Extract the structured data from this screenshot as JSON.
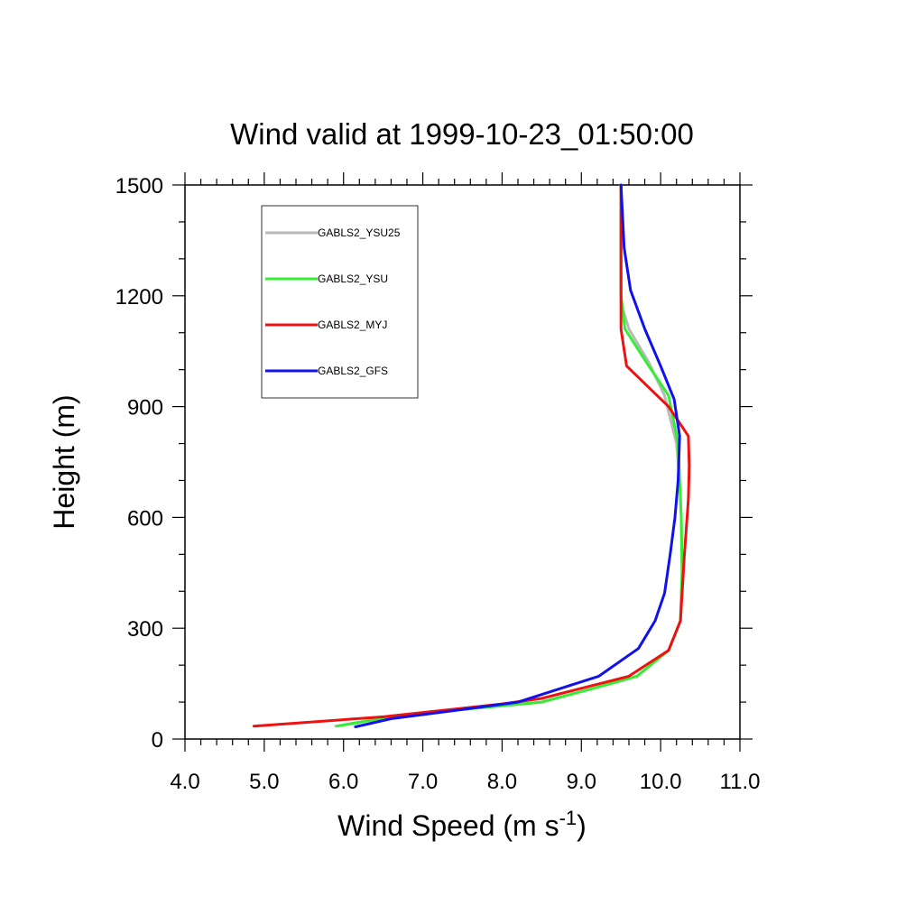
{
  "chart_data": {
    "type": "line",
    "title": "Wind valid at 1999-10-23_01:50:00",
    "xlabel": "Wind Speed (m s",
    "xlabel_sup": "-1",
    "xlabel_suffix": ")",
    "ylabel": "Height (m)",
    "xlim": [
      4.0,
      11.0
    ],
    "ylim": [
      0,
      1500
    ],
    "x_ticks": [
      4.0,
      5.0,
      6.0,
      7.0,
      8.0,
      9.0,
      10.0,
      11.0
    ],
    "x_tick_labels": [
      "4.0",
      "5.0",
      "6.0",
      "7.0",
      "8.0",
      "9.0",
      "10.0",
      "11.0"
    ],
    "y_ticks": [
      0,
      300,
      600,
      900,
      1200,
      1500
    ],
    "y_tick_labels": [
      "0",
      "300",
      "600",
      "900",
      "1200",
      "1500"
    ],
    "grid": false,
    "legend_position": "top-left",
    "series": [
      {
        "name": "GABLS2_YSU25",
        "color": "#b9b9b9",
        "points": [
          [
            5.9,
            35
          ],
          [
            6.6,
            60
          ],
          [
            7.5,
            80
          ],
          [
            8.5,
            100
          ],
          [
            9.2,
            140
          ],
          [
            9.7,
            170
          ],
          [
            10.1,
            240
          ],
          [
            10.25,
            320
          ],
          [
            10.27,
            450
          ],
          [
            10.26,
            600
          ],
          [
            10.24,
            700
          ],
          [
            10.2,
            800
          ],
          [
            10.05,
            930
          ],
          [
            9.85,
            1020
          ],
          [
            9.6,
            1110
          ],
          [
            9.5,
            1180
          ],
          [
            9.5,
            1300
          ],
          [
            9.5,
            1500
          ]
        ]
      },
      {
        "name": "GABLS2_YSU",
        "color": "#33ee33",
        "points": [
          [
            5.92,
            35
          ],
          [
            6.6,
            60
          ],
          [
            7.5,
            80
          ],
          [
            8.5,
            100
          ],
          [
            9.2,
            140
          ],
          [
            9.7,
            170
          ],
          [
            10.1,
            240
          ],
          [
            10.25,
            320
          ],
          [
            10.27,
            450
          ],
          [
            10.26,
            600
          ],
          [
            10.24,
            700
          ],
          [
            10.22,
            800
          ],
          [
            10.1,
            930
          ],
          [
            9.85,
            1010
          ],
          [
            9.55,
            1110
          ],
          [
            9.5,
            1200
          ],
          [
            9.5,
            1300
          ],
          [
            9.5,
            1500
          ]
        ]
      },
      {
        "name": "GABLS2_MYJ",
        "color": "#ee1111",
        "points": [
          [
            4.87,
            35
          ],
          [
            6.5,
            60
          ],
          [
            8.0,
            95
          ],
          [
            8.5,
            110
          ],
          [
            9.6,
            170
          ],
          [
            10.1,
            240
          ],
          [
            10.25,
            320
          ],
          [
            10.3,
            500
          ],
          [
            10.35,
            650
          ],
          [
            10.36,
            740
          ],
          [
            10.35,
            820
          ],
          [
            10.1,
            900
          ],
          [
            9.57,
            1010
          ],
          [
            9.5,
            1110
          ],
          [
            9.5,
            1200
          ],
          [
            9.5,
            1300
          ],
          [
            9.5,
            1500
          ]
        ]
      },
      {
        "name": "GABLS2_GFS",
        "color": "#1111ee",
        "points": [
          [
            6.15,
            33
          ],
          [
            6.6,
            55
          ],
          [
            7.5,
            80
          ],
          [
            8.2,
            100
          ],
          [
            9.22,
            170
          ],
          [
            9.72,
            245
          ],
          [
            9.93,
            320
          ],
          [
            10.05,
            395
          ],
          [
            10.12,
            500
          ],
          [
            10.18,
            600
          ],
          [
            10.22,
            700
          ],
          [
            10.24,
            820
          ],
          [
            10.17,
            920
          ],
          [
            10.0,
            1010
          ],
          [
            9.8,
            1110
          ],
          [
            9.62,
            1215
          ],
          [
            9.54,
            1330
          ],
          [
            9.5,
            1500
          ]
        ]
      }
    ]
  }
}
